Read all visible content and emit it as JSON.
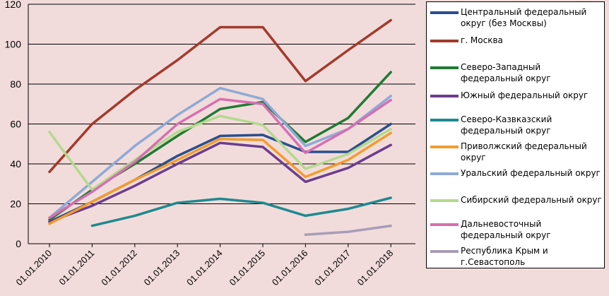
{
  "chart_data": {
    "type": "line",
    "title": "",
    "xlabel": "",
    "ylabel": "",
    "categories": [
      "01.01.2010",
      "01.01.2011",
      "01.01.2012",
      "01.01.2013",
      "01.01.2014",
      "01.01.2015",
      "01.01.2016",
      "01.01.2017",
      "01.01.2018"
    ],
    "ylim": [
      0,
      120
    ],
    "yticks": [
      "0",
      "20",
      "40",
      "60",
      "80",
      "100",
      "120"
    ],
    "grid": true,
    "legend": "right",
    "series": [
      {
        "name": "Центральный федеральный округ (без Москвы)",
        "color": "#2a4f8f",
        "values": [
          11,
          21,
          32,
          44,
          54,
          54.5,
          46,
          46,
          60
        ]
      },
      {
        "name": "г. Москва",
        "color": "#a33a2c",
        "values": [
          36,
          60,
          77,
          92,
          108.5,
          108.5,
          81.5,
          97,
          112
        ]
      },
      {
        "name": "Северо-Западный федеральный округ",
        "color": "#1e7b34",
        "values": [
          12,
          27,
          40,
          54,
          67.5,
          71,
          51,
          63,
          86
        ]
      },
      {
        "name": "Южный федеральный округ",
        "color": "#6c3d8d",
        "values": [
          11,
          19,
          29,
          40,
          50.5,
          48.5,
          31,
          38,
          49.5
        ]
      },
      {
        "name": "Северо-Казвказский федеральный округ",
        "color": "#1e8a8f",
        "values": [
          null,
          9,
          14,
          20.5,
          22.5,
          20.5,
          14,
          17.5,
          23
        ]
      },
      {
        "name": "Приволжский федеральный округ",
        "color": "#f39c2c",
        "values": [
          10,
          21,
          32,
          42,
          52.5,
          52,
          33.5,
          42,
          55.5
        ]
      },
      {
        "name": "Уральский федеральный округ",
        "color": "#8eaad6",
        "values": [
          13,
          31,
          49,
          64.5,
          78,
          72.5,
          49,
          57.5,
          74
        ]
      },
      {
        "name": "Сибирский федеральный округ",
        "color": "#b4d98e",
        "values": [
          56,
          27,
          42,
          56,
          64,
          59.5,
          37.5,
          45,
          57.5
        ]
      },
      {
        "name": "Дальневосточный федеральный округ",
        "color": "#d66fb2",
        "values": [
          13,
          26,
          41,
          60,
          72.5,
          70,
          45.5,
          57.5,
          72
        ]
      },
      {
        "name": "Республика Крым и г.Севастополь",
        "color": "#a89db8",
        "values": [
          null,
          null,
          null,
          null,
          null,
          null,
          4.5,
          6,
          9
        ]
      }
    ]
  }
}
